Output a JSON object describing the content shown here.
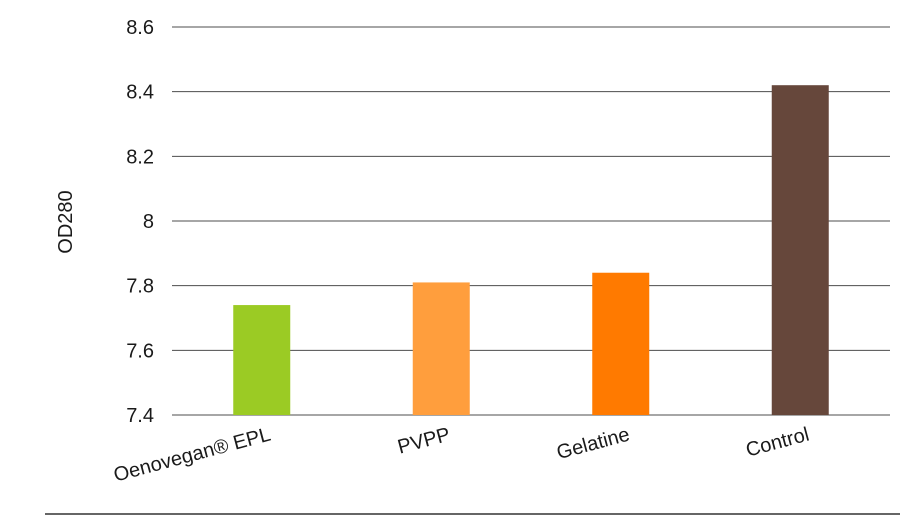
{
  "chart_data": {
    "type": "bar",
    "title": "",
    "xlabel": "",
    "ylabel": "OD280",
    "ylim": [
      7.4,
      8.6
    ],
    "yticks": [
      "7.4",
      "7.6",
      "7.8",
      "8",
      "8.2",
      "8.4",
      "8.6"
    ],
    "grid": true,
    "legend": "none",
    "categories": [
      "Oenovegan® EPL",
      "PVPP",
      "Gelatine",
      "Control"
    ],
    "values": [
      7.74,
      7.81,
      7.84,
      8.42
    ],
    "colors": [
      "#9BCB24",
      "#FF9E3D",
      "#FF7A00",
      "#66473B"
    ]
  }
}
